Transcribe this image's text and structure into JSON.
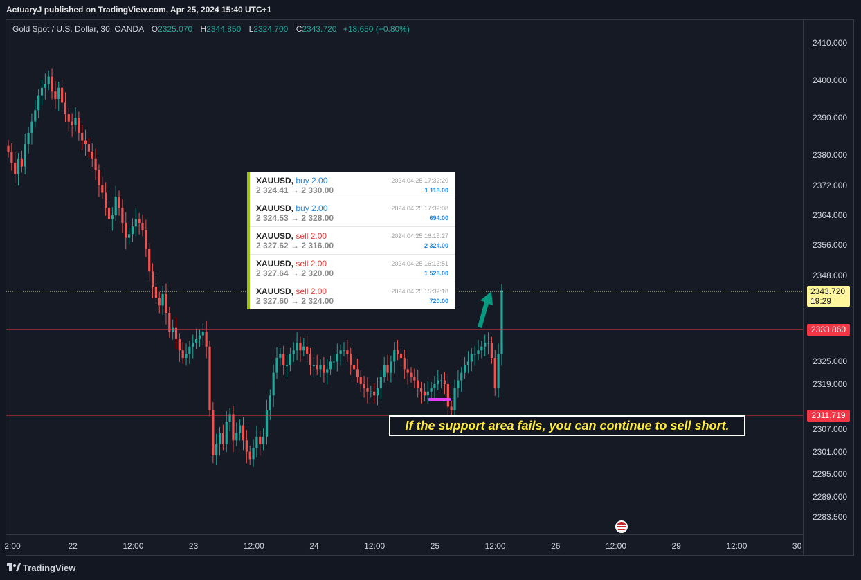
{
  "header": {
    "publisher_text": "ActuaryJ published on TradingView.com, Apr 25, 2024 15:40 UTC+1"
  },
  "symbol": {
    "name": "Gold Spot / U.S. Dollar, 30, OANDA",
    "o_label": "O",
    "o_value": "2325.070",
    "h_label": "H",
    "h_value": "2344.850",
    "l_label": "L",
    "l_value": "2324.700",
    "c_label": "C",
    "c_value": "2343.720",
    "change": "+18.650 (+0.80%)"
  },
  "y_axis_ticks": [
    "2410.000",
    "2400.000",
    "2390.000",
    "2380.000",
    "2372.000",
    "2364.000",
    "2356.000",
    "2348.000",
    "2325.000",
    "2319.000",
    "2307.000",
    "2301.000",
    "2295.000",
    "2289.000",
    "2283.500"
  ],
  "x_axis_ticks": [
    "2:00",
    "22",
    "12:00",
    "23",
    "12:00",
    "24",
    "12:00",
    "25",
    "12:00",
    "26",
    "12:00",
    "29",
    "12:00",
    "30"
  ],
  "levels": {
    "resistance": "2333.860",
    "support": "2311.719",
    "current_price": "2343.720",
    "countdown": "19:29"
  },
  "trades": [
    {
      "symbol": "XAUUSD,",
      "side": "buy 2.00",
      "side_type": "buy",
      "prices": "2 324.41 → 2 330.00",
      "time": "2024.04.25 17:32:20",
      "amount": "1 118.00"
    },
    {
      "symbol": "XAUUSD,",
      "side": "buy 2.00",
      "side_type": "buy",
      "prices": "2 324.53 → 2 328.00",
      "time": "2024.04.25 17:32:08",
      "amount": "694.00"
    },
    {
      "symbol": "XAUUSD,",
      "side": "sell 2.00",
      "side_type": "sell",
      "prices": "2 327.62 → 2 316.00",
      "time": "2024.04.25 16:15:27",
      "amount": "2 324.00"
    },
    {
      "symbol": "XAUUSD,",
      "side": "sell 2.00",
      "side_type": "sell",
      "prices": "2 327.64 → 2 320.00",
      "time": "2024.04.25 16:13:51",
      "amount": "1 528.00"
    },
    {
      "symbol": "XAUUSD,",
      "side": "sell 2.00",
      "side_type": "sell",
      "prices": "2 327.60 → 2 324.00",
      "time": "2024.04.25 15:32:18",
      "amount": "720.00"
    }
  ],
  "annotation": "If the support area fails, you can continue to sell short.",
  "footer": {
    "brand": "TradingView"
  },
  "colors": {
    "up": "#26a69a",
    "down": "#ef5350",
    "level": "#f23645",
    "arrow": "#089981",
    "highlight": "#e040fb"
  },
  "chart_data": {
    "type": "candlestick",
    "title": "Gold Spot / U.S. Dollar, 30, OANDA",
    "y_range": [
      2280,
      2415
    ],
    "closes": [
      2381,
      2378,
      2375,
      2379,
      2377,
      2383,
      2386,
      2389,
      2392,
      2396,
      2398,
      2399,
      2401,
      2397,
      2395,
      2398,
      2394,
      2391,
      2389,
      2388,
      2390,
      2386,
      2384,
      2383,
      2381,
      2379,
      2376,
      2372,
      2370,
      2366,
      2363,
      2364,
      2369,
      2366,
      2362,
      2358,
      2359,
      2361,
      2363,
      2362,
      2360,
      2355,
      2349,
      2345,
      2342,
      2340,
      2343,
      2338,
      2333,
      2334,
      2331,
      2328,
      2326,
      2327,
      2329,
      2330,
      2331,
      2332,
      2333,
      2329,
      2312,
      2300,
      2303,
      2306,
      2303,
      2309,
      2311,
      2304,
      2306,
      2308,
      2304,
      2301,
      2299,
      2302,
      2305,
      2303,
      2305,
      2312,
      2316,
      2322,
      2326,
      2327,
      2324,
      2324,
      2327,
      2328,
      2330,
      2328,
      2329,
      2327,
      2324,
      2324,
      2323,
      2324,
      2322,
      2323,
      2325,
      2325,
      2327,
      2328,
      2328,
      2327,
      2324,
      2323,
      2321,
      2319,
      2318,
      2317,
      2317,
      2316,
      2318,
      2321,
      2324,
      2322,
      2325,
      2328,
      2327,
      2326,
      2323,
      2322,
      2321,
      2320,
      2318,
      2317,
      2316,
      2317,
      2318,
      2319,
      2320,
      2320,
      2319,
      2313,
      2312,
      2318,
      2320,
      2322,
      2324,
      2325,
      2327,
      2327,
      2328,
      2329,
      2330,
      2330,
      2326,
      2318,
      2327,
      2344
    ]
  }
}
